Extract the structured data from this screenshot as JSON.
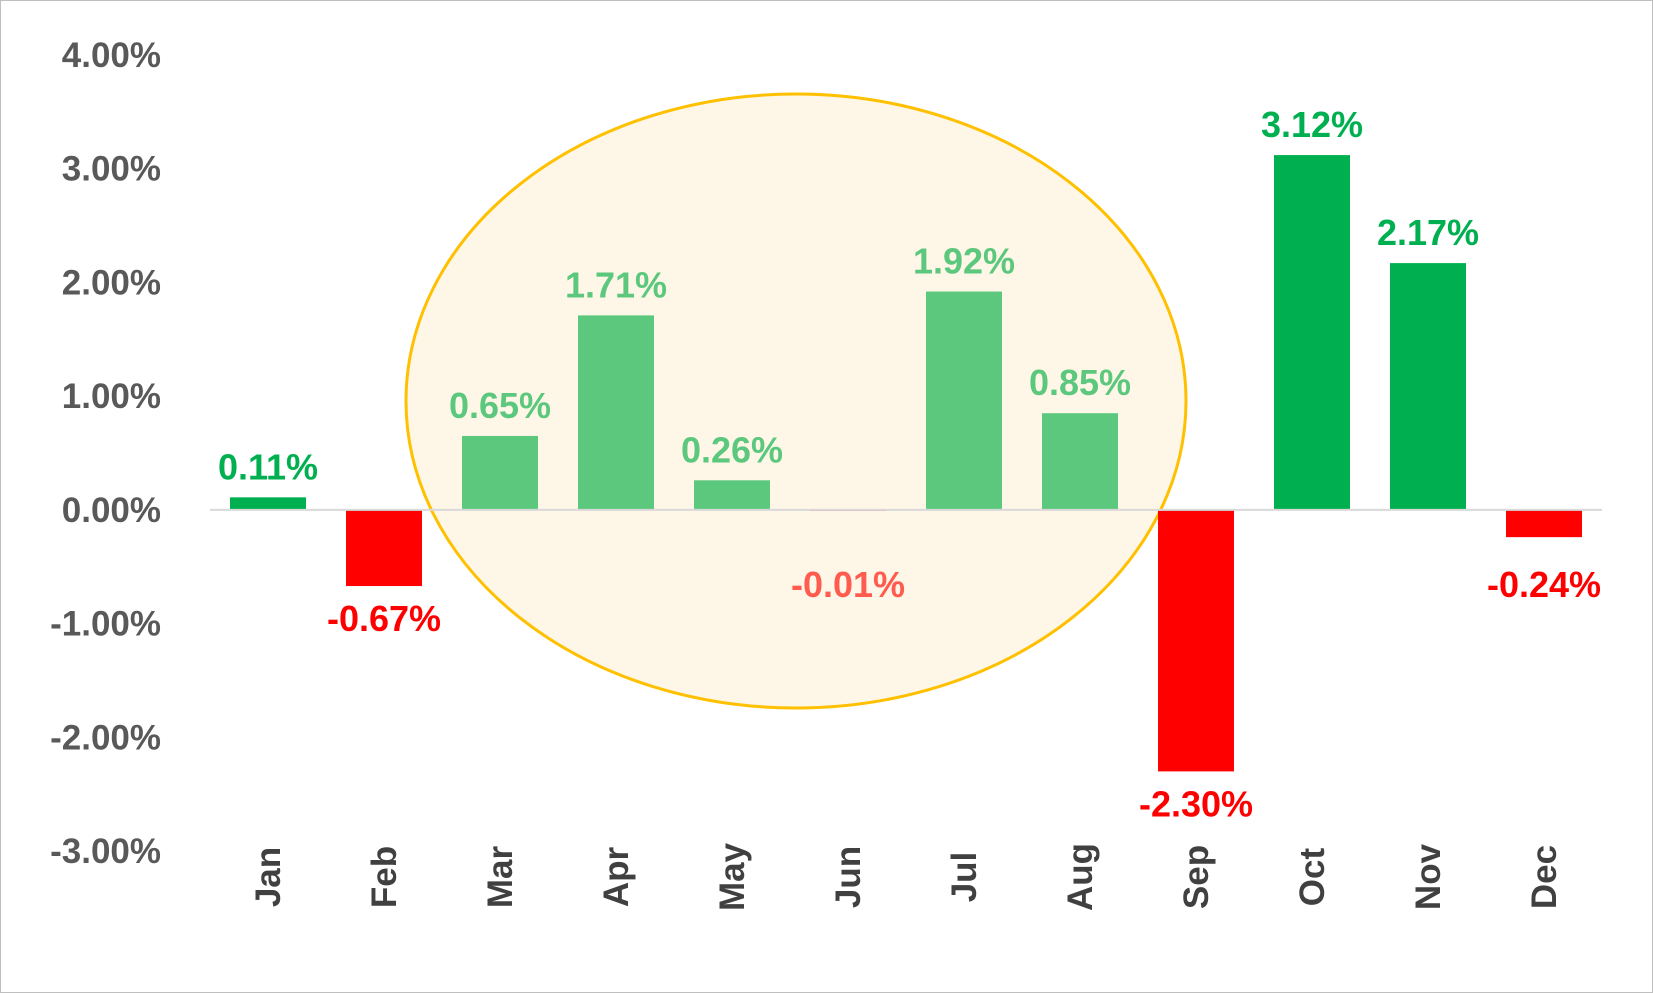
{
  "chart_data": {
    "type": "bar",
    "title": "",
    "xlabel": "",
    "ylabel": "",
    "categories": [
      "Jan",
      "Feb",
      "Mar",
      "Apr",
      "May",
      "Jun",
      "Jul",
      "Aug",
      "Sep",
      "Oct",
      "Nov",
      "Dec"
    ],
    "values": [
      0.11,
      -0.67,
      0.65,
      1.71,
      0.26,
      -0.01,
      1.92,
      0.85,
      -2.3,
      3.12,
      2.17,
      -0.24
    ],
    "data_labels": [
      "0.11%",
      "-0.67%",
      "0.65%",
      "1.71%",
      "0.26%",
      "-0.01%",
      "1.92%",
      "0.85%",
      "-2.30%",
      "3.12%",
      "2.17%",
      "-0.24%"
    ],
    "y_ticks": [
      4,
      3,
      2,
      1,
      0,
      -1,
      -2,
      -3
    ],
    "y_tick_labels": [
      "4.00%",
      "3.00%",
      "2.00%",
      "1.00%",
      "0.00%",
      "-1.00%",
      "-2.00%",
      "-3.00%"
    ],
    "ylim": [
      -3,
      4
    ],
    "grid": false,
    "legend": "none",
    "highlight": {
      "shape": "ellipse",
      "spans_categories": [
        "Mar",
        "Apr",
        "May",
        "Jun",
        "Jul",
        "Aug"
      ],
      "outline_color": "#FFC000",
      "fill_color": "#FEF6E7"
    },
    "colors": {
      "positive": "#00B050",
      "negative": "#FF0000",
      "highlighted_positive": "#5BC87D",
      "highlighted_negative": "#FF5B4F",
      "axis": "#D9D9D9"
    }
  }
}
